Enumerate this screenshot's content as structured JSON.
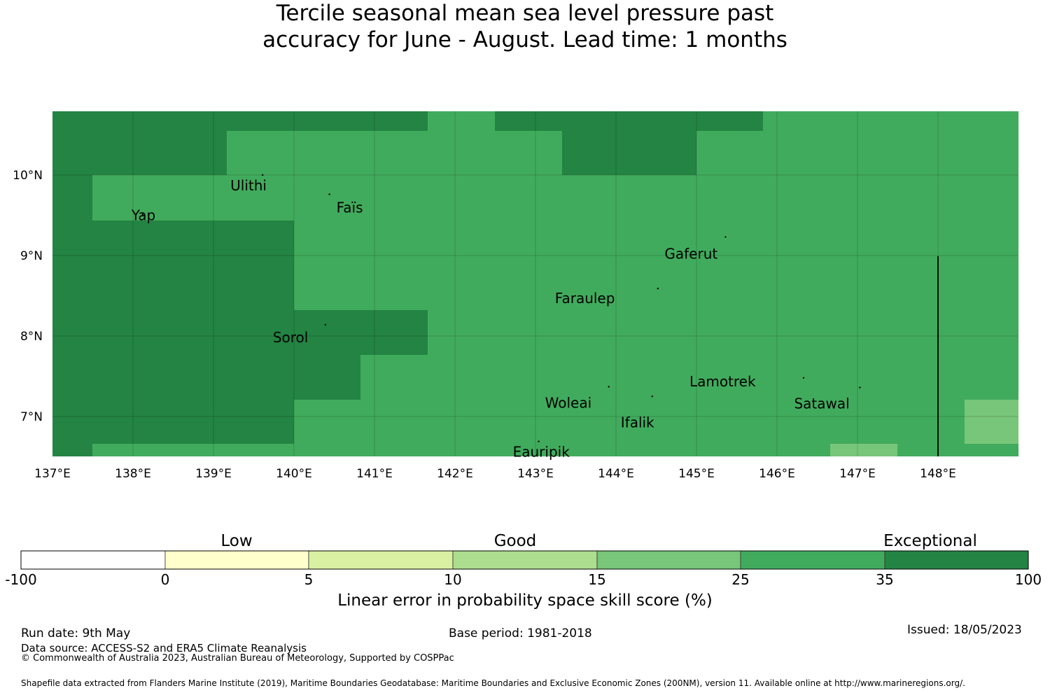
{
  "title": {
    "line1": "Tercile seasonal mean sea level pressure past",
    "line2": "accuracy for June - August. Lead time: 1 months"
  },
  "map": {
    "lon_range": [
      137,
      149
    ],
    "lat_range": [
      6.5,
      10.8
    ],
    "x_ticks": [
      "137°E",
      "138°E",
      "139°E",
      "140°E",
      "141°E",
      "142°E",
      "143°E",
      "144°E",
      "145°E",
      "146°E",
      "147°E",
      "148°E"
    ],
    "y_ticks": [
      "10°N",
      "9°N",
      "8°N",
      "7°N"
    ],
    "colors": {
      "exceptional": "#238443",
      "high": "#41ab5d",
      "mid": "#78c679",
      "good": "#addd8e",
      "fair": "#d9f0a3",
      "low": "#ffffcc",
      "none": "#ffffff"
    },
    "places": [
      {
        "name": "Ulithi",
        "lon": 139.61,
        "lat": 10.0
      },
      {
        "name": "Faïs",
        "lon": 140.44,
        "lat": 9.76
      },
      {
        "name": "Yap",
        "lon": 138.12,
        "lat": 9.51
      },
      {
        "name": "Gaferut",
        "lon": 145.36,
        "lat": 9.23
      },
      {
        "name": "Faraulep",
        "lon": 144.52,
        "lat": 8.59
      },
      {
        "name": "Sorol",
        "lon": 140.39,
        "lat": 8.14
      },
      {
        "name": "Woleai",
        "lon": 143.91,
        "lat": 7.37
      },
      {
        "name": "Ifalik",
        "lon": 144.45,
        "lat": 7.25
      },
      {
        "name": "Lamotrek",
        "lon": 146.33,
        "lat": 7.48
      },
      {
        "name": "Satawal",
        "lon": 147.03,
        "lat": 7.36
      },
      {
        "name": "Eauripik",
        "lon": 143.04,
        "lat": 6.69
      }
    ]
  },
  "colorbar": {
    "categories": [
      "Low",
      "Good",
      "Exceptional"
    ],
    "ticks": [
      "-100",
      "0",
      "5",
      "10",
      "15",
      "25",
      "35",
      "100"
    ],
    "colors": [
      "#ffffff",
      "#ffffcc",
      "#d9f0a3",
      "#addd8e",
      "#78c679",
      "#41ab5d",
      "#238443"
    ],
    "label": "Linear error in probability space skill score (%)"
  },
  "footer": {
    "run_date": "Run date: 9th May",
    "base_period": "Base period: 1981-2018",
    "issued": "Issued: 18/05/2023",
    "data_source": "Data source: ACCESS-S2 and ERA5 Climate Reanalysis",
    "copyright": "© Commonwealth of Australia 2023, Australian Bureau of Meteorology, Supported by COSPPac",
    "shapefile": "Shapefile data extracted from Flanders Marine Institute (2019), Maritime Boundaries Geodatabase: Maritime Boundaries and Exclusive Economic Zones (200NM), version 11. Available online at http://www.marineregions.org/."
  }
}
